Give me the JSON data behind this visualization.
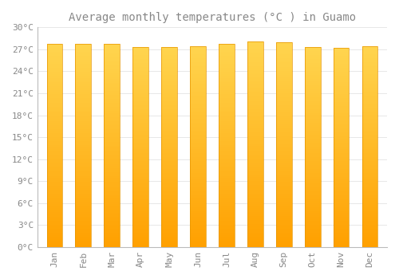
{
  "title": "Average monthly temperatures (°C ) in Guamo",
  "months": [
    "Jan",
    "Feb",
    "Mar",
    "Apr",
    "May",
    "Jun",
    "Jul",
    "Aug",
    "Sep",
    "Oct",
    "Nov",
    "Dec"
  ],
  "values": [
    27.8,
    27.8,
    27.7,
    27.3,
    27.3,
    27.4,
    27.8,
    28.1,
    28.0,
    27.3,
    27.2,
    27.4
  ],
  "bar_color_bottom": "#FFA000",
  "bar_color_top": "#FFD54F",
  "bar_edge_color": "#E69500",
  "background_color": "#FFFFFF",
  "grid_color": "#DDDDDD",
  "ylim": [
    0,
    30
  ],
  "yticks": [
    0,
    3,
    6,
    9,
    12,
    15,
    18,
    21,
    24,
    27,
    30
  ],
  "ytick_labels": [
    "0°C",
    "3°C",
    "6°C",
    "9°C",
    "12°C",
    "15°C",
    "18°C",
    "21°C",
    "24°C",
    "27°C",
    "30°C"
  ],
  "title_fontsize": 10,
  "tick_fontsize": 8,
  "font_color": "#888888",
  "font_family": "monospace",
  "bar_width": 0.55,
  "n_gradient_steps": 100
}
